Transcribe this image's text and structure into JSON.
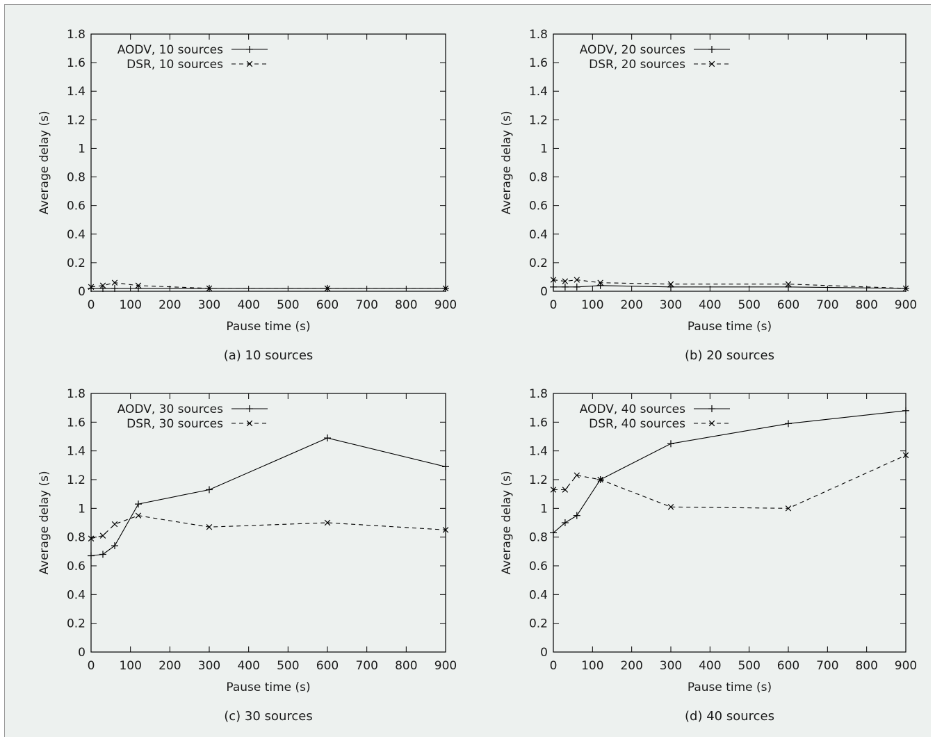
{
  "chart_data": [
    {
      "type": "line",
      "caption": "(a) 10 sources",
      "xlabel": "Pause time (s)",
      "ylabel": "Average delay (s)",
      "xlim": [
        0,
        900
      ],
      "ylim": [
        0,
        1.8
      ],
      "xticks": [
        0,
        100,
        200,
        300,
        400,
        500,
        600,
        700,
        800,
        900
      ],
      "yticks": [
        "0",
        "0.2",
        "0.4",
        "0.6",
        "0.8",
        "1",
        "1.2",
        "1.4",
        "1.6",
        "1.8"
      ],
      "legend_position": "top-left",
      "grid": false,
      "series": [
        {
          "name": "AODV, 10 sources",
          "style": "solid",
          "marker": "plus",
          "x": [
            0,
            30,
            60,
            120,
            300,
            600,
            900
          ],
          "y": [
            0.02,
            0.02,
            0.02,
            0.02,
            0.02,
            0.02,
            0.02
          ]
        },
        {
          "name": "DSR, 10 sources",
          "style": "dashed",
          "marker": "cross",
          "x": [
            0,
            30,
            60,
            120,
            300,
            600,
            900
          ],
          "y": [
            0.03,
            0.04,
            0.06,
            0.04,
            0.02,
            0.02,
            0.02
          ]
        }
      ]
    },
    {
      "type": "line",
      "caption": "(b) 20 sources",
      "xlabel": "Pause time (s)",
      "ylabel": "Average delay (s)",
      "xlim": [
        0,
        900
      ],
      "ylim": [
        0,
        1.8
      ],
      "xticks": [
        0,
        100,
        200,
        300,
        400,
        500,
        600,
        700,
        800,
        900
      ],
      "yticks": [
        "0",
        "0.2",
        "0.4",
        "0.6",
        "0.8",
        "1",
        "1.2",
        "1.4",
        "1.6",
        "1.8"
      ],
      "legend_position": "top-left",
      "grid": false,
      "series": [
        {
          "name": "AODV, 20 sources",
          "style": "solid",
          "marker": "plus",
          "x": [
            0,
            30,
            60,
            120,
            300,
            600,
            900
          ],
          "y": [
            0.03,
            0.03,
            0.03,
            0.04,
            0.03,
            0.03,
            0.02
          ]
        },
        {
          "name": "DSR, 20 sources",
          "style": "dashed",
          "marker": "cross",
          "x": [
            0,
            30,
            60,
            120,
            300,
            600,
            900
          ],
          "y": [
            0.08,
            0.07,
            0.08,
            0.06,
            0.05,
            0.05,
            0.02
          ]
        }
      ]
    },
    {
      "type": "line",
      "caption": "(c) 30 sources",
      "xlabel": "Pause time (s)",
      "ylabel": "Average delay (s)",
      "xlim": [
        0,
        900
      ],
      "ylim": [
        0,
        1.8
      ],
      "xticks": [
        0,
        100,
        200,
        300,
        400,
        500,
        600,
        700,
        800,
        900
      ],
      "yticks": [
        "0",
        "0.2",
        "0.4",
        "0.6",
        "0.8",
        "1",
        "1.2",
        "1.4",
        "1.6",
        "1.8"
      ],
      "legend_position": "top-left",
      "grid": false,
      "series": [
        {
          "name": "AODV, 30 sources",
          "style": "solid",
          "marker": "plus",
          "x": [
            0,
            30,
            60,
            120,
            300,
            600,
            900
          ],
          "y": [
            0.67,
            0.68,
            0.74,
            1.03,
            1.13,
            1.49,
            1.29
          ]
        },
        {
          "name": "DSR, 30 sources",
          "style": "dashed",
          "marker": "cross",
          "x": [
            0,
            30,
            60,
            120,
            300,
            600,
            900
          ],
          "y": [
            0.79,
            0.81,
            0.89,
            0.95,
            0.87,
            0.9,
            0.85
          ]
        }
      ]
    },
    {
      "type": "line",
      "caption": "(d) 40 sources",
      "xlabel": "Pause time (s)",
      "ylabel": "Average delay (s)",
      "xlim": [
        0,
        900
      ],
      "ylim": [
        0,
        1.8
      ],
      "xticks": [
        0,
        100,
        200,
        300,
        400,
        500,
        600,
        700,
        800,
        900
      ],
      "yticks": [
        "0",
        "0.2",
        "0.4",
        "0.6",
        "0.8",
        "1",
        "1.2",
        "1.4",
        "1.6",
        "1.8"
      ],
      "legend_position": "top-left",
      "grid": false,
      "series": [
        {
          "name": "AODV, 40 sources",
          "style": "solid",
          "marker": "plus",
          "x": [
            0,
            30,
            60,
            120,
            300,
            600,
            900
          ],
          "y": [
            0.83,
            0.9,
            0.95,
            1.2,
            1.45,
            1.59,
            1.68
          ]
        },
        {
          "name": "DSR, 40 sources",
          "style": "dashed",
          "marker": "cross",
          "x": [
            0,
            30,
            60,
            120,
            300,
            600,
            900
          ],
          "y": [
            1.13,
            1.13,
            1.23,
            1.2,
            1.01,
            1.0,
            1.37
          ]
        }
      ]
    }
  ]
}
